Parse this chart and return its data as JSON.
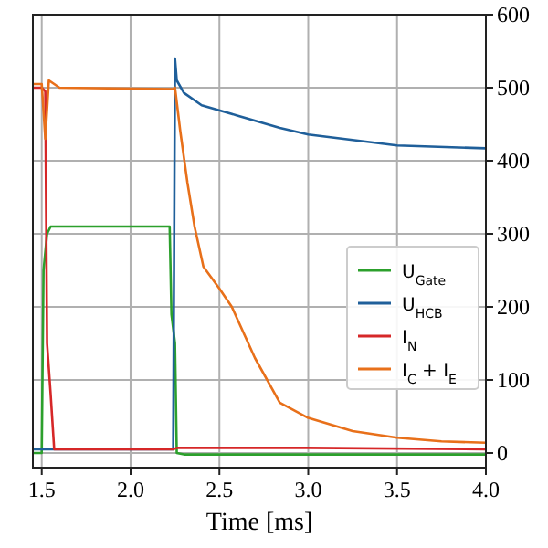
{
  "chart_data": {
    "type": "line",
    "xlabel": "Time [ms]",
    "xlim": [
      1.45,
      4.0
    ],
    "xticks": [
      {
        "value": 1.5,
        "label": "1.5"
      },
      {
        "value": 2.0,
        "label": "2.0"
      },
      {
        "value": 2.5,
        "label": "2.5"
      },
      {
        "value": 3.0,
        "label": "3.0"
      },
      {
        "value": 3.5,
        "label": "3.5"
      },
      {
        "value": 4.0,
        "label": "4.0"
      }
    ],
    "ylim": [
      -20,
      600
    ],
    "yticks": [
      0,
      100,
      200,
      300,
      400,
      500,
      600
    ],
    "grid": true,
    "legend": "right",
    "line_style": "solid",
    "marker": "none",
    "series": [
      {
        "name": "U$_{Gate}$",
        "color": "#2ca02c",
        "x": [
          1.45,
          1.5,
          1.51,
          1.53,
          1.55,
          2.22,
          2.23,
          2.25,
          2.26,
          2.3,
          3.0,
          4.0
        ],
        "values": [
          0,
          0,
          250,
          300,
          310,
          310,
          190,
          150,
          0,
          -2,
          -2,
          -2
        ]
      },
      {
        "name": "U$_{HCB}$",
        "color": "#1f5f9a",
        "x": [
          1.45,
          2.24,
          2.25,
          2.26,
          2.3,
          2.4,
          2.6,
          2.84,
          3.0,
          3.5,
          4.0
        ],
        "values": [
          5,
          5,
          540,
          510,
          493,
          476,
          462,
          445,
          436,
          421,
          417
        ]
      },
      {
        "name": "I$_{N}$",
        "color": "#d62728",
        "x": [
          1.45,
          1.5,
          1.52,
          1.53,
          1.55,
          1.57,
          2.0,
          2.24,
          2.26,
          3.0,
          4.0
        ],
        "values": [
          500,
          500,
          495,
          150,
          81,
          5,
          5,
          5,
          7,
          7,
          5
        ]
      },
      {
        "name": "I$_{C}$ + I$_{E}$",
        "color": "#e8701a",
        "x": [
          1.45,
          1.5,
          1.52,
          1.54,
          1.6,
          2.24,
          2.25,
          2.28,
          2.32,
          2.36,
          2.41,
          2.5,
          2.57,
          2.7,
          2.84,
          3.0,
          3.25,
          3.5,
          3.75,
          4.0
        ],
        "values": [
          505,
          505,
          430,
          510,
          500,
          498,
          500,
          440,
          370,
          310,
          255,
          225,
          200,
          130,
          69,
          48,
          30,
          21,
          16,
          14
        ]
      }
    ]
  }
}
